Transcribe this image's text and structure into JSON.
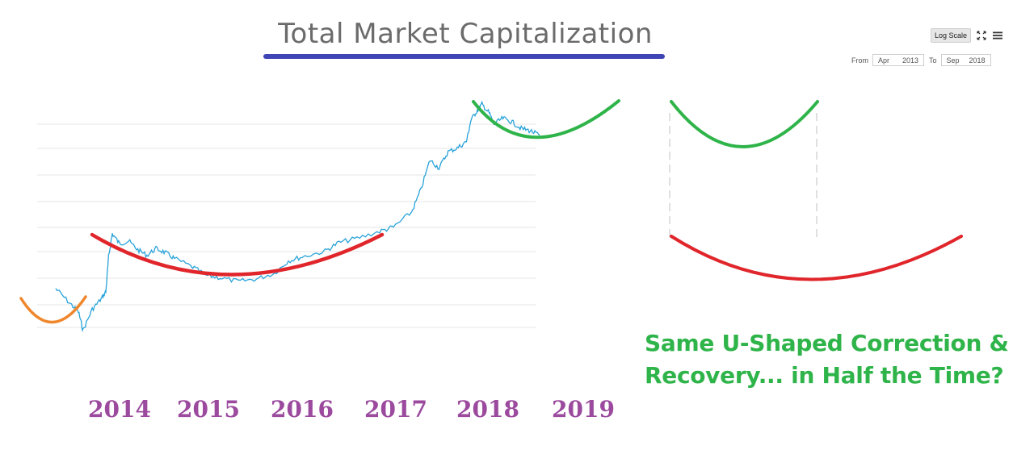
{
  "chart_data": {
    "type": "line",
    "title": "Total Market Capitalization",
    "x_tick_labels": [
      "2014",
      "2015",
      "2016",
      "2017",
      "2018",
      "2019"
    ],
    "log_scale": true,
    "grid": true,
    "date_range": {
      "from": "Apr 2013",
      "to": "Sep 2018"
    },
    "series": [
      {
        "values": [
          [
            2013.3,
            0.3
          ],
          [
            2013.45,
            0.22
          ],
          [
            2013.55,
            0.18
          ],
          [
            2013.6,
            0.12
          ],
          [
            2013.7,
            0.19
          ],
          [
            2013.8,
            0.24
          ],
          [
            2013.85,
            0.28
          ],
          [
            2013.88,
            0.6
          ],
          [
            2013.92,
            1.0
          ],
          [
            2014.0,
            0.8
          ],
          [
            2014.1,
            0.85
          ],
          [
            2014.2,
            0.7
          ],
          [
            2014.3,
            0.62
          ],
          [
            2014.4,
            0.72
          ],
          [
            2014.5,
            0.66
          ],
          [
            2014.6,
            0.58
          ],
          [
            2014.8,
            0.48
          ],
          [
            2014.95,
            0.4
          ],
          [
            2015.1,
            0.38
          ],
          [
            2015.3,
            0.35
          ],
          [
            2015.5,
            0.37
          ],
          [
            2015.7,
            0.42
          ],
          [
            2015.85,
            0.55
          ],
          [
            2016.0,
            0.6
          ],
          [
            2016.25,
            0.68
          ],
          [
            2016.4,
            0.82
          ],
          [
            2016.6,
            0.9
          ],
          [
            2016.85,
            1.05
          ],
          [
            2017.0,
            1.15
          ],
          [
            2017.2,
            1.6
          ],
          [
            2017.3,
            2.6
          ],
          [
            2017.4,
            5.0
          ],
          [
            2017.5,
            4.2
          ],
          [
            2017.6,
            6.0
          ],
          [
            2017.7,
            6.5
          ],
          [
            2017.8,
            7.5
          ],
          [
            2017.85,
            12.0
          ],
          [
            2017.92,
            15.0
          ],
          [
            2017.97,
            17.0
          ],
          [
            2018.05,
            14.0
          ],
          [
            2018.1,
            11.0
          ],
          [
            2018.2,
            12.5
          ],
          [
            2018.3,
            11.5
          ],
          [
            2018.4,
            10.0
          ],
          [
            2018.5,
            9.5
          ],
          [
            2018.6,
            8.6
          ]
        ]
      }
    ],
    "annotation_curves": [
      "2013 U-curve",
      "2014-2017 U-curve",
      "2018 U-curve"
    ],
    "colors": {
      "price_line": "#29a3d9",
      "curve_2013": "#f0862c",
      "curve_2014_2017": "#e0262b",
      "curve_2018": "#2fb44a",
      "year_labels": "#9b4a9e",
      "title_underline": "#3f45b5"
    }
  },
  "toolbar": {
    "log_scale_label": "Log Scale",
    "from_label": "From",
    "from_month": "Apr",
    "from_year": "2013",
    "to_label": "To",
    "to_month": "Sep",
    "to_year": "2018"
  },
  "caption": {
    "line1": "Same U-Shaped Correction &",
    "line2": "Recovery... in Half the Time?"
  }
}
